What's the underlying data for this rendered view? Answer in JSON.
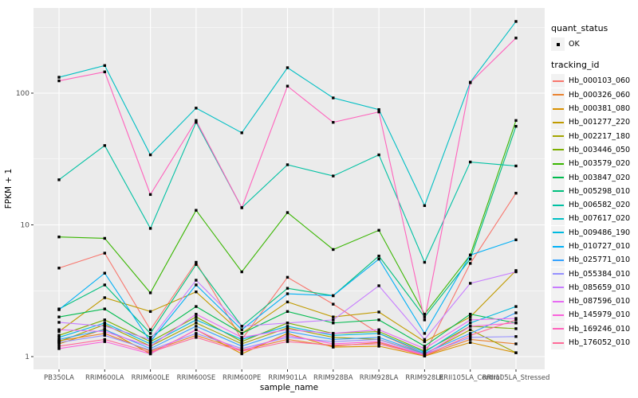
{
  "figure": {
    "background": "#ffffff",
    "panel_background": "#EBEBEB",
    "gridline_color": "#ffffff",
    "tick_label_color": "#4D4D4D",
    "axis_title_color": "#000000"
  },
  "legend": {
    "quant_status_title": "quant_status",
    "quant_status_items": [
      {
        "label": "OK",
        "glyph": "black-point"
      }
    ],
    "tracking_title": "tracking_id",
    "key_background": "#F2F2F2"
  },
  "chart_data": {
    "type": "line",
    "title": "",
    "xlabel": "sample_name",
    "ylabel": "FPKM + 1",
    "y_scale": "log10",
    "y_ticks": [
      1,
      10,
      100
    ],
    "y_tick_labels": [
      "1",
      "10",
      "100"
    ],
    "y_minor_ticks": [
      3.1623,
      31.623,
      316.23
    ],
    "ylim_log": [
      0.9,
      450
    ],
    "grid": "white major and minor on gray panel",
    "legend_position": "right",
    "marker": "small-black-square",
    "categories": [
      "PB350LA",
      "RRIM600LA",
      "RRIM600LE",
      "RRIM600SE",
      "RRIM600PE",
      "RRIM901LA",
      "RRIM928BA",
      "RRIM928LA",
      "RRIM928LE",
      "RRII105LA_Control",
      "RRII105LA_Stressed"
    ],
    "series": [
      {
        "name": "Hb_000103_060",
        "color": "#F8766D",
        "values": [
          4.7,
          6.1,
          1.6,
          5.2,
          1.35,
          4.0,
          2.5,
          1.5,
          1.05,
          5.1,
          17.4
        ]
      },
      {
        "name": "Hb_000326_060",
        "color": "#EA8331",
        "values": [
          1.32,
          1.5,
          1.1,
          1.45,
          1.12,
          1.35,
          1.2,
          1.28,
          1.02,
          1.35,
          1.25
        ]
      },
      {
        "name": "Hb_000381_080",
        "color": "#D89000",
        "values": [
          1.25,
          1.62,
          1.05,
          1.6,
          1.05,
          1.5,
          1.18,
          1.2,
          1.01,
          1.28,
          1.07
        ]
      },
      {
        "name": "Hb_001277_220",
        "color": "#C09B00",
        "values": [
          1.55,
          2.8,
          2.2,
          3.1,
          1.5,
          2.6,
          2.0,
          2.18,
          1.3,
          2.0,
          4.5
        ]
      },
      {
        "name": "Hb_002217_180",
        "color": "#A3A500",
        "values": [
          1.3,
          1.75,
          1.2,
          1.8,
          1.25,
          1.65,
          1.4,
          1.35,
          1.05,
          1.6,
          1.07
        ]
      },
      {
        "name": "Hb_003446_050",
        "color": "#7CAE00",
        "values": [
          1.45,
          1.9,
          1.3,
          2.0,
          1.3,
          1.8,
          1.5,
          1.55,
          1.1,
          1.7,
          1.63
        ]
      },
      {
        "name": "Hb_003579_020",
        "color": "#39B600",
        "values": [
          8.1,
          7.9,
          3.05,
          12.9,
          4.4,
          12.4,
          6.5,
          9.1,
          2.1,
          5.9,
          62
        ]
      },
      {
        "name": "Hb_003847_020",
        "color": "#00BB4E",
        "values": [
          2.0,
          2.3,
          1.4,
          2.4,
          1.5,
          2.2,
          1.8,
          1.9,
          1.2,
          2.1,
          1.8
        ]
      },
      {
        "name": "Hb_005298_010",
        "color": "#00BF7D",
        "values": [
          2.3,
          3.5,
          1.5,
          5.0,
          1.7,
          3.3,
          2.9,
          5.8,
          2.0,
          5.5,
          56
        ]
      },
      {
        "name": "Hb_006582_020",
        "color": "#00C1A3",
        "values": [
          22,
          40,
          9.4,
          60,
          13.5,
          28.6,
          23.5,
          34,
          5.2,
          30,
          28
        ]
      },
      {
        "name": "Hb_007617_020",
        "color": "#00BFC4",
        "values": [
          132,
          162,
          34,
          77,
          50,
          156,
          92,
          75,
          14,
          121,
          350
        ]
      },
      {
        "name": "Hb_009486_190",
        "color": "#00BAE0",
        "values": [
          1.4,
          1.8,
          1.25,
          1.9,
          1.35,
          1.7,
          1.45,
          1.5,
          1.08,
          1.8,
          2.4
        ]
      },
      {
        "name": "Hb_010727_010",
        "color": "#00B0F6",
        "values": [
          2.27,
          4.3,
          1.3,
          3.5,
          1.6,
          3.0,
          2.9,
          5.5,
          1.5,
          5.9,
          7.7
        ]
      },
      {
        "name": "Hb_025771_010",
        "color": "#35A2FF",
        "values": [
          1.35,
          1.6,
          1.15,
          1.7,
          1.2,
          1.55,
          1.35,
          1.4,
          1.06,
          1.5,
          2.15
        ]
      },
      {
        "name": "Hb_055384_010",
        "color": "#9590FF",
        "values": [
          1.28,
          1.45,
          1.12,
          1.5,
          1.15,
          1.4,
          1.3,
          1.35,
          1.04,
          1.4,
          1.42
        ]
      },
      {
        "name": "Hb_085659_010",
        "color": "#C77CFF",
        "values": [
          1.82,
          1.7,
          1.35,
          3.8,
          1.7,
          1.8,
          1.9,
          3.45,
          1.35,
          3.6,
          4.4
        ]
      },
      {
        "name": "Hb_087596_010",
        "color": "#E76BF3",
        "values": [
          1.6,
          1.55,
          1.2,
          2.1,
          1.4,
          1.6,
          1.5,
          1.6,
          1.15,
          1.9,
          1.95
        ]
      },
      {
        "name": "Hb_145979_010",
        "color": "#FA62DB",
        "values": [
          1.15,
          1.3,
          1.05,
          1.6,
          1.1,
          1.45,
          1.25,
          1.3,
          1.03,
          1.7,
          1.8
        ]
      },
      {
        "name": "Hb_169246_010",
        "color": "#FF62BC",
        "values": [
          124,
          145,
          17,
          62,
          13.5,
          113,
          60,
          72,
          1.9,
          120,
          262
        ]
      },
      {
        "name": "Hb_176052_010",
        "color": "#FF6A98",
        "values": [
          1.2,
          1.35,
          1.08,
          1.4,
          1.1,
          1.3,
          1.22,
          1.25,
          1.02,
          1.45,
          1.9
        ]
      }
    ]
  }
}
